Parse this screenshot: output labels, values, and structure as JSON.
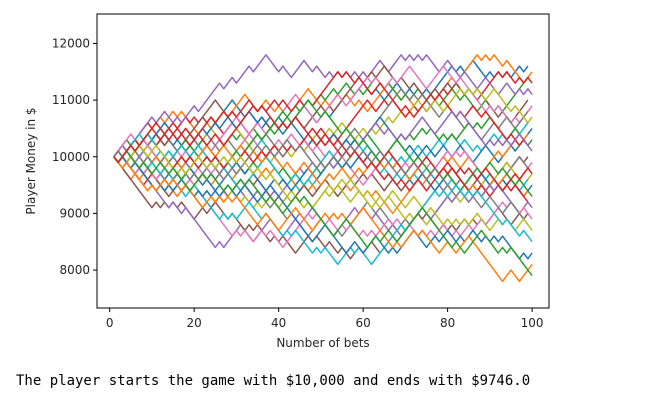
{
  "chart_data": {
    "type": "line",
    "title": "",
    "xlabel": "Number of bets",
    "ylabel": "Player Money in $",
    "xlim": [
      -3,
      104
    ],
    "ylim": [
      7330,
      12520
    ],
    "xticks": [
      0,
      20,
      40,
      60,
      80,
      100
    ],
    "yticks": [
      8000,
      9000,
      10000,
      11000,
      12000
    ],
    "grid": false,
    "legend": "none",
    "start_value": 10000,
    "step": 100,
    "num_bets": 100,
    "colors": [
      "#1f77b4",
      "#ff7f0e",
      "#2ca02c",
      "#d62728",
      "#9467bd",
      "#8c564b",
      "#e377c2",
      "#7f7f7f",
      "#bcbd22",
      "#17becf"
    ],
    "series": [
      {
        "x": [
          1,
          99
        ],
        "y": [
          10000,
          11600
        ]
      },
      {
        "x": [
          1,
          99
        ],
        "y": [
          10000,
          11500
        ]
      },
      {
        "x": [
          1,
          99
        ],
        "y": [
          10000,
          11400
        ]
      },
      {
        "x": [
          1,
          99
        ],
        "y": [
          10000,
          11300
        ]
      },
      {
        "x": [
          1,
          99
        ],
        "y": [
          10000,
          11100
        ]
      },
      {
        "x": [
          1,
          99
        ],
        "y": [
          10000,
          11000
        ]
      },
      {
        "x": [
          1,
          99
        ],
        "y": [
          10000,
          10900
        ]
      },
      {
        "x": [
          1,
          99
        ],
        "y": [
          10000,
          10800
        ]
      },
      {
        "x": [
          1,
          99
        ],
        "y": [
          10000,
          10700
        ]
      },
      {
        "x": [
          1,
          99
        ],
        "y": [
          10000,
          10600
        ]
      },
      {
        "x": [
          1,
          99
        ],
        "y": [
          10000,
          10500
        ]
      },
      {
        "x": [
          1,
          99
        ],
        "y": [
          10000,
          10400
        ]
      },
      {
        "x": [
          1,
          99
        ],
        "y": [
          10000,
          10300
        ]
      },
      {
        "x": [
          1,
          99
        ],
        "y": [
          10000,
          10200
        ]
      },
      {
        "x": [
          1,
          99
        ],
        "y": [
          10000,
          10100
        ]
      },
      {
        "x": [
          1,
          99
        ],
        "y": [
          10000,
          10000
        ]
      },
      {
        "x": [
          1,
          99
        ],
        "y": [
          10000,
          9900
        ]
      },
      {
        "x": [
          1,
          99
        ],
        "y": [
          10000,
          9800
        ]
      },
      {
        "x": [
          1,
          99
        ],
        "y": [
          10000,
          9700
        ]
      },
      {
        "x": [
          1,
          99
        ],
        "y": [
          10000,
          9600
        ]
      },
      {
        "x": [
          1,
          99
        ],
        "y": [
          10000,
          9500
        ]
      },
      {
        "x": [
          1,
          99
        ],
        "y": [
          10000,
          9400
        ]
      },
      {
        "x": [
          1,
          99
        ],
        "y": [
          10000,
          9300
        ]
      },
      {
        "x": [
          1,
          99
        ],
        "y": [
          10000,
          9200
        ]
      },
      {
        "x": [
          1,
          99
        ],
        "y": [
          10000,
          9100
        ]
      },
      {
        "x": [
          1,
          99
        ],
        "y": [
          10000,
          9000
        ]
      },
      {
        "x": [
          1,
          99
        ],
        "y": [
          10000,
          8900
        ]
      },
      {
        "x": [
          1,
          99
        ],
        "y": [
          10000,
          8800
        ]
      },
      {
        "x": [
          1,
          99
        ],
        "y": [
          10000,
          8700
        ]
      },
      {
        "x": [
          1,
          99
        ],
        "y": [
          10000,
          8500
        ]
      },
      {
        "x": [
          1,
          99
        ],
        "y": [
          10000,
          8300
        ]
      },
      {
        "x": [
          1,
          99
        ],
        "y": [
          10000,
          8100
        ]
      },
      {
        "x": [
          1,
          99
        ],
        "y": [
          10000,
          7900
        ]
      },
      {
        "x": [
          1,
          99
        ],
        "y": [
          10000,
          9746
        ]
      }
    ]
  },
  "output_text": "The player starts the game with $10,000 and ends with $9746.0"
}
